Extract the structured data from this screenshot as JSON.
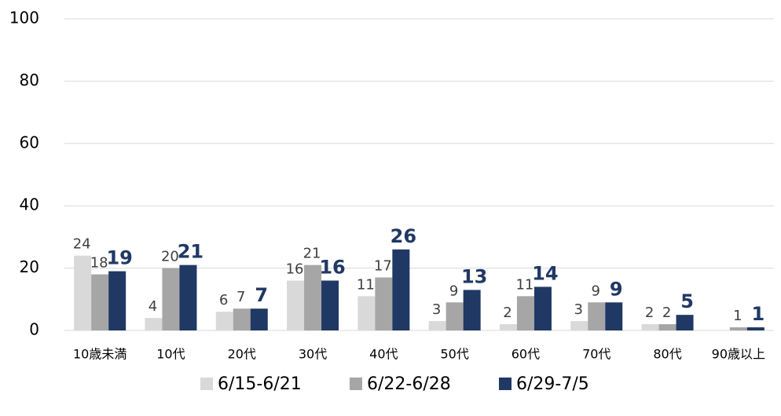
{
  "chart_data": {
    "type": "bar",
    "categories": [
      "10歳未満",
      "10代",
      "20代",
      "30代",
      "40代",
      "50代",
      "60代",
      "70代",
      "80代",
      "90歳以上"
    ],
    "series": [
      {
        "name": "6/15-6/21",
        "color": "#d9d9d9",
        "values": [
          24,
          4,
          6,
          16,
          11,
          3,
          2,
          3,
          2,
          null
        ]
      },
      {
        "name": "6/22-6/28",
        "color": "#a6a6a6",
        "values": [
          18,
          20,
          7,
          21,
          17,
          9,
          11,
          9,
          2,
          1
        ]
      },
      {
        "name": "6/29-7/5",
        "color": "#203864",
        "values": [
          19,
          21,
          7,
          16,
          26,
          13,
          14,
          9,
          5,
          1
        ]
      }
    ],
    "ylim": [
      0,
      100
    ],
    "yticks": [
      0,
      20,
      40,
      60,
      80,
      100
    ],
    "grid": true,
    "legend": "bottom"
  }
}
